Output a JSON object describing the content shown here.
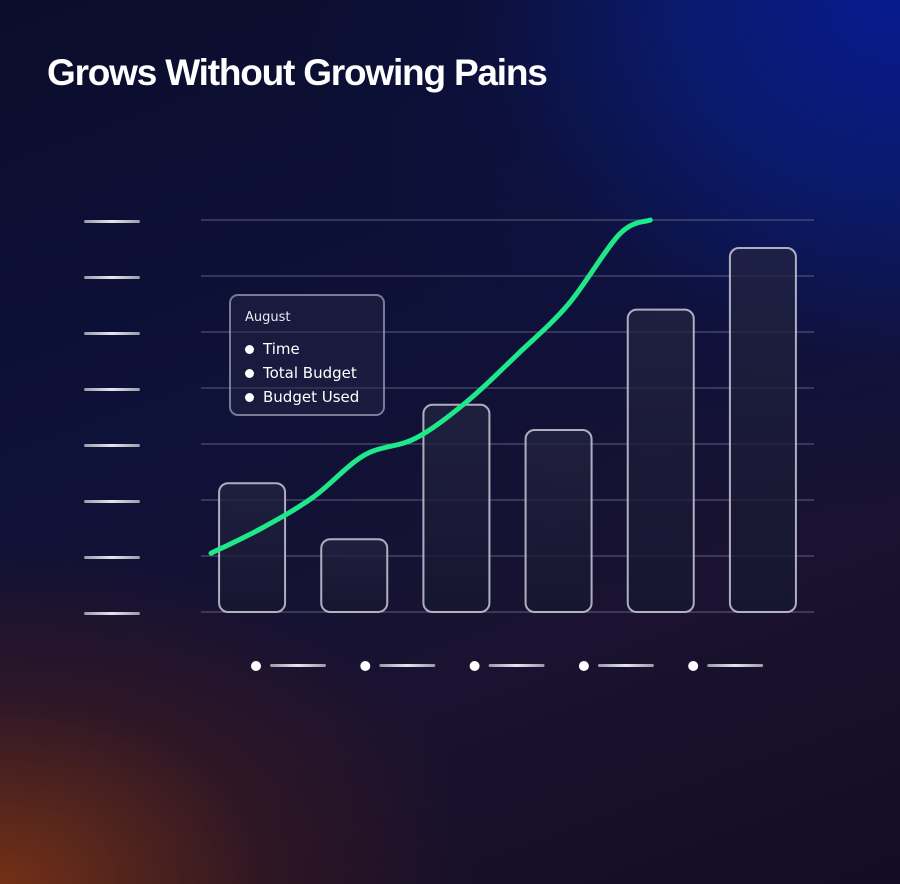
{
  "title": "Grows Without Growing Pains",
  "tooltip": {
    "heading": "August",
    "items": [
      "Time",
      "Total Budget",
      "Budget Used"
    ]
  },
  "colors": {
    "line": "#1ee88a",
    "bar_stroke": "#c9c9d8",
    "gridline": "#9a9ab0",
    "title": "#ffffff"
  },
  "chart_data": {
    "type": "bar",
    "categories": [
      "",
      "",
      "",
      "",
      "",
      ""
    ],
    "ylim": [
      0,
      7
    ],
    "gridlines": 8,
    "grid": true,
    "bars": [
      2.3,
      1.3,
      3.7,
      3.25,
      5.4,
      6.5
    ],
    "line": [
      [
        0.0,
        1.05
      ],
      [
        0.5,
        1.5
      ],
      [
        1.0,
        2.05
      ],
      [
        1.5,
        2.8
      ],
      [
        2.0,
        3.1
      ],
      [
        2.5,
        3.75
      ],
      [
        3.0,
        4.6
      ],
      [
        3.5,
        5.5
      ],
      [
        4.0,
        6.75
      ],
      [
        4.3,
        7.0
      ]
    ],
    "legend": "none"
  }
}
